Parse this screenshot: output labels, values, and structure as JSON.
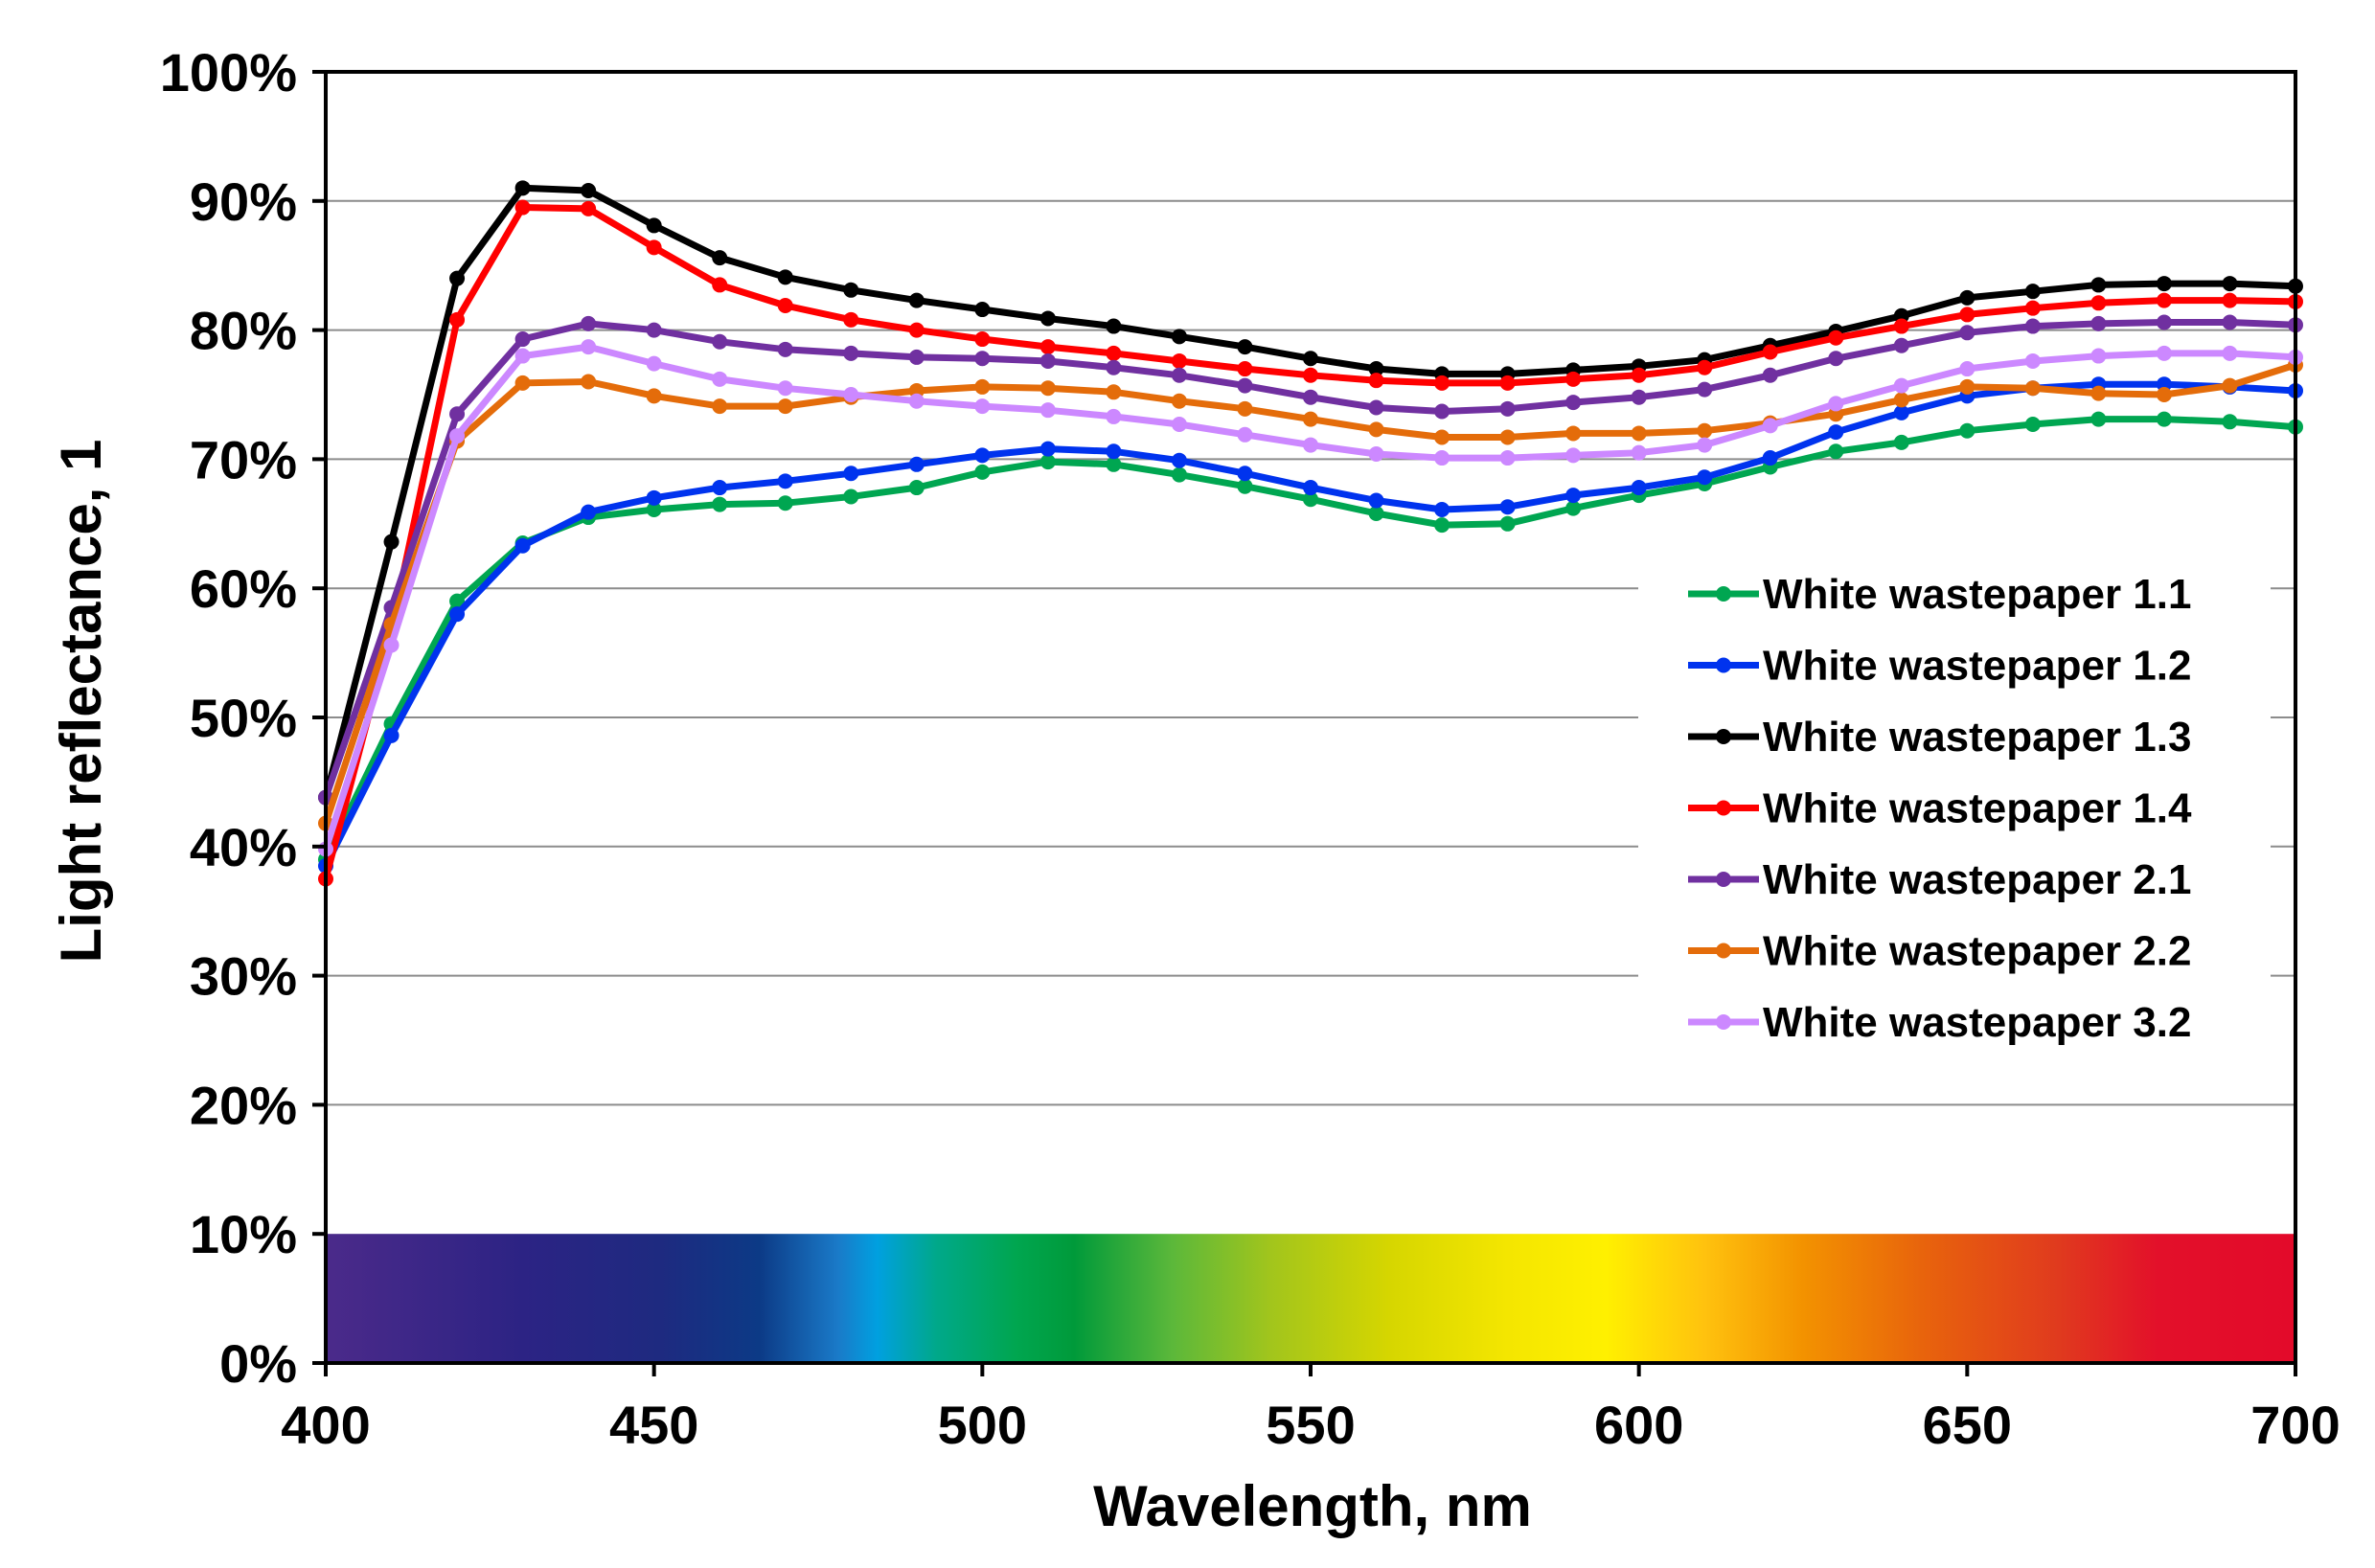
{
  "chart_data": {
    "type": "line",
    "title": "",
    "xlabel": "Wavelength, nm",
    "ylabel": "Light reflectance, 1",
    "xlim": [
      400,
      700
    ],
    "ylim": [
      0,
      1
    ],
    "x_ticks": [
      400,
      450,
      500,
      550,
      600,
      650,
      700
    ],
    "x_tick_labels": [
      "400",
      "450",
      "500",
      "550",
      "600",
      "650",
      "700"
    ],
    "y_ticks": [
      0,
      0.1,
      0.2,
      0.3,
      0.4,
      0.5,
      0.6,
      0.7,
      0.8,
      0.9,
      1.0
    ],
    "y_tick_labels": [
      "0%",
      "10%",
      "20%",
      "30%",
      "40%",
      "50%",
      "60%",
      "70%",
      "80%",
      "90%",
      "100%"
    ],
    "grid": "horizontal",
    "legend_position": "right",
    "spectrum_band": {
      "from": 0,
      "to": 0.1,
      "x_from": 400,
      "x_to": 700
    },
    "x": [
      400,
      410,
      420,
      430,
      440,
      450,
      460,
      470,
      480,
      490,
      500,
      510,
      520,
      530,
      540,
      550,
      560,
      570,
      580,
      590,
      600,
      610,
      620,
      630,
      640,
      650,
      660,
      670,
      680,
      690,
      700
    ],
    "series": [
      {
        "name": "White wastepaper 1.1",
        "color": "#00a651",
        "values": [
          0.39,
          0.495,
          0.59,
          0.635,
          0.655,
          0.661,
          0.665,
          0.666,
          0.671,
          0.678,
          0.69,
          0.698,
          0.696,
          0.688,
          0.679,
          0.669,
          0.658,
          0.649,
          0.65,
          0.662,
          0.672,
          0.681,
          0.694,
          0.706,
          0.713,
          0.722,
          0.727,
          0.731,
          0.731,
          0.729,
          0.725
        ]
      },
      {
        "name": "White wastepaper 1.2",
        "color": "#0033ee",
        "values": [
          0.385,
          0.486,
          0.58,
          0.633,
          0.659,
          0.67,
          0.678,
          0.683,
          0.689,
          0.696,
          0.703,
          0.708,
          0.706,
          0.699,
          0.689,
          0.678,
          0.668,
          0.661,
          0.663,
          0.672,
          0.678,
          0.686,
          0.701,
          0.721,
          0.736,
          0.749,
          0.755,
          0.758,
          0.758,
          0.756,
          0.753
        ]
      },
      {
        "name": "White wastepaper 1.3",
        "color": "#000000",
        "values": [
          0.438,
          0.636,
          0.84,
          0.91,
          0.908,
          0.881,
          0.856,
          0.841,
          0.831,
          0.823,
          0.816,
          0.809,
          0.803,
          0.795,
          0.787,
          0.778,
          0.77,
          0.766,
          0.766,
          0.769,
          0.772,
          0.777,
          0.788,
          0.799,
          0.811,
          0.825,
          0.83,
          0.835,
          0.836,
          0.836,
          0.834
        ]
      },
      {
        "name": "White wastepaper 1.4",
        "color": "#ff0000",
        "values": [
          0.375,
          0.568,
          0.808,
          0.895,
          0.894,
          0.864,
          0.835,
          0.819,
          0.808,
          0.8,
          0.793,
          0.787,
          0.782,
          0.776,
          0.77,
          0.765,
          0.761,
          0.759,
          0.759,
          0.762,
          0.765,
          0.771,
          0.783,
          0.794,
          0.803,
          0.812,
          0.817,
          0.821,
          0.823,
          0.823,
          0.822
        ]
      },
      {
        "name": "White wastepaper 2.1",
        "color": "#7030a0",
        "values": [
          0.438,
          0.585,
          0.735,
          0.793,
          0.805,
          0.8,
          0.791,
          0.785,
          0.782,
          0.779,
          0.778,
          0.776,
          0.771,
          0.765,
          0.757,
          0.748,
          0.74,
          0.737,
          0.739,
          0.744,
          0.748,
          0.754,
          0.765,
          0.778,
          0.788,
          0.798,
          0.803,
          0.805,
          0.806,
          0.806,
          0.804
        ]
      },
      {
        "name": "White wastepaper 2.2",
        "color": "#e46c0a",
        "values": [
          0.418,
          0.572,
          0.714,
          0.759,
          0.76,
          0.749,
          0.741,
          0.741,
          0.748,
          0.753,
          0.756,
          0.755,
          0.752,
          0.745,
          0.739,
          0.731,
          0.723,
          0.717,
          0.717,
          0.72,
          0.72,
          0.722,
          0.728,
          0.735,
          0.746,
          0.756,
          0.755,
          0.751,
          0.75,
          0.757,
          0.773
        ]
      },
      {
        "name": "White wastepaper 3.2",
        "color": "#cc88ff",
        "values": [
          0.398,
          0.556,
          0.718,
          0.78,
          0.787,
          0.774,
          0.762,
          0.755,
          0.75,
          0.745,
          0.741,
          0.738,
          0.733,
          0.727,
          0.719,
          0.711,
          0.704,
          0.701,
          0.701,
          0.703,
          0.705,
          0.711,
          0.726,
          0.743,
          0.757,
          0.77,
          0.776,
          0.78,
          0.782,
          0.782,
          0.779
        ]
      }
    ]
  }
}
